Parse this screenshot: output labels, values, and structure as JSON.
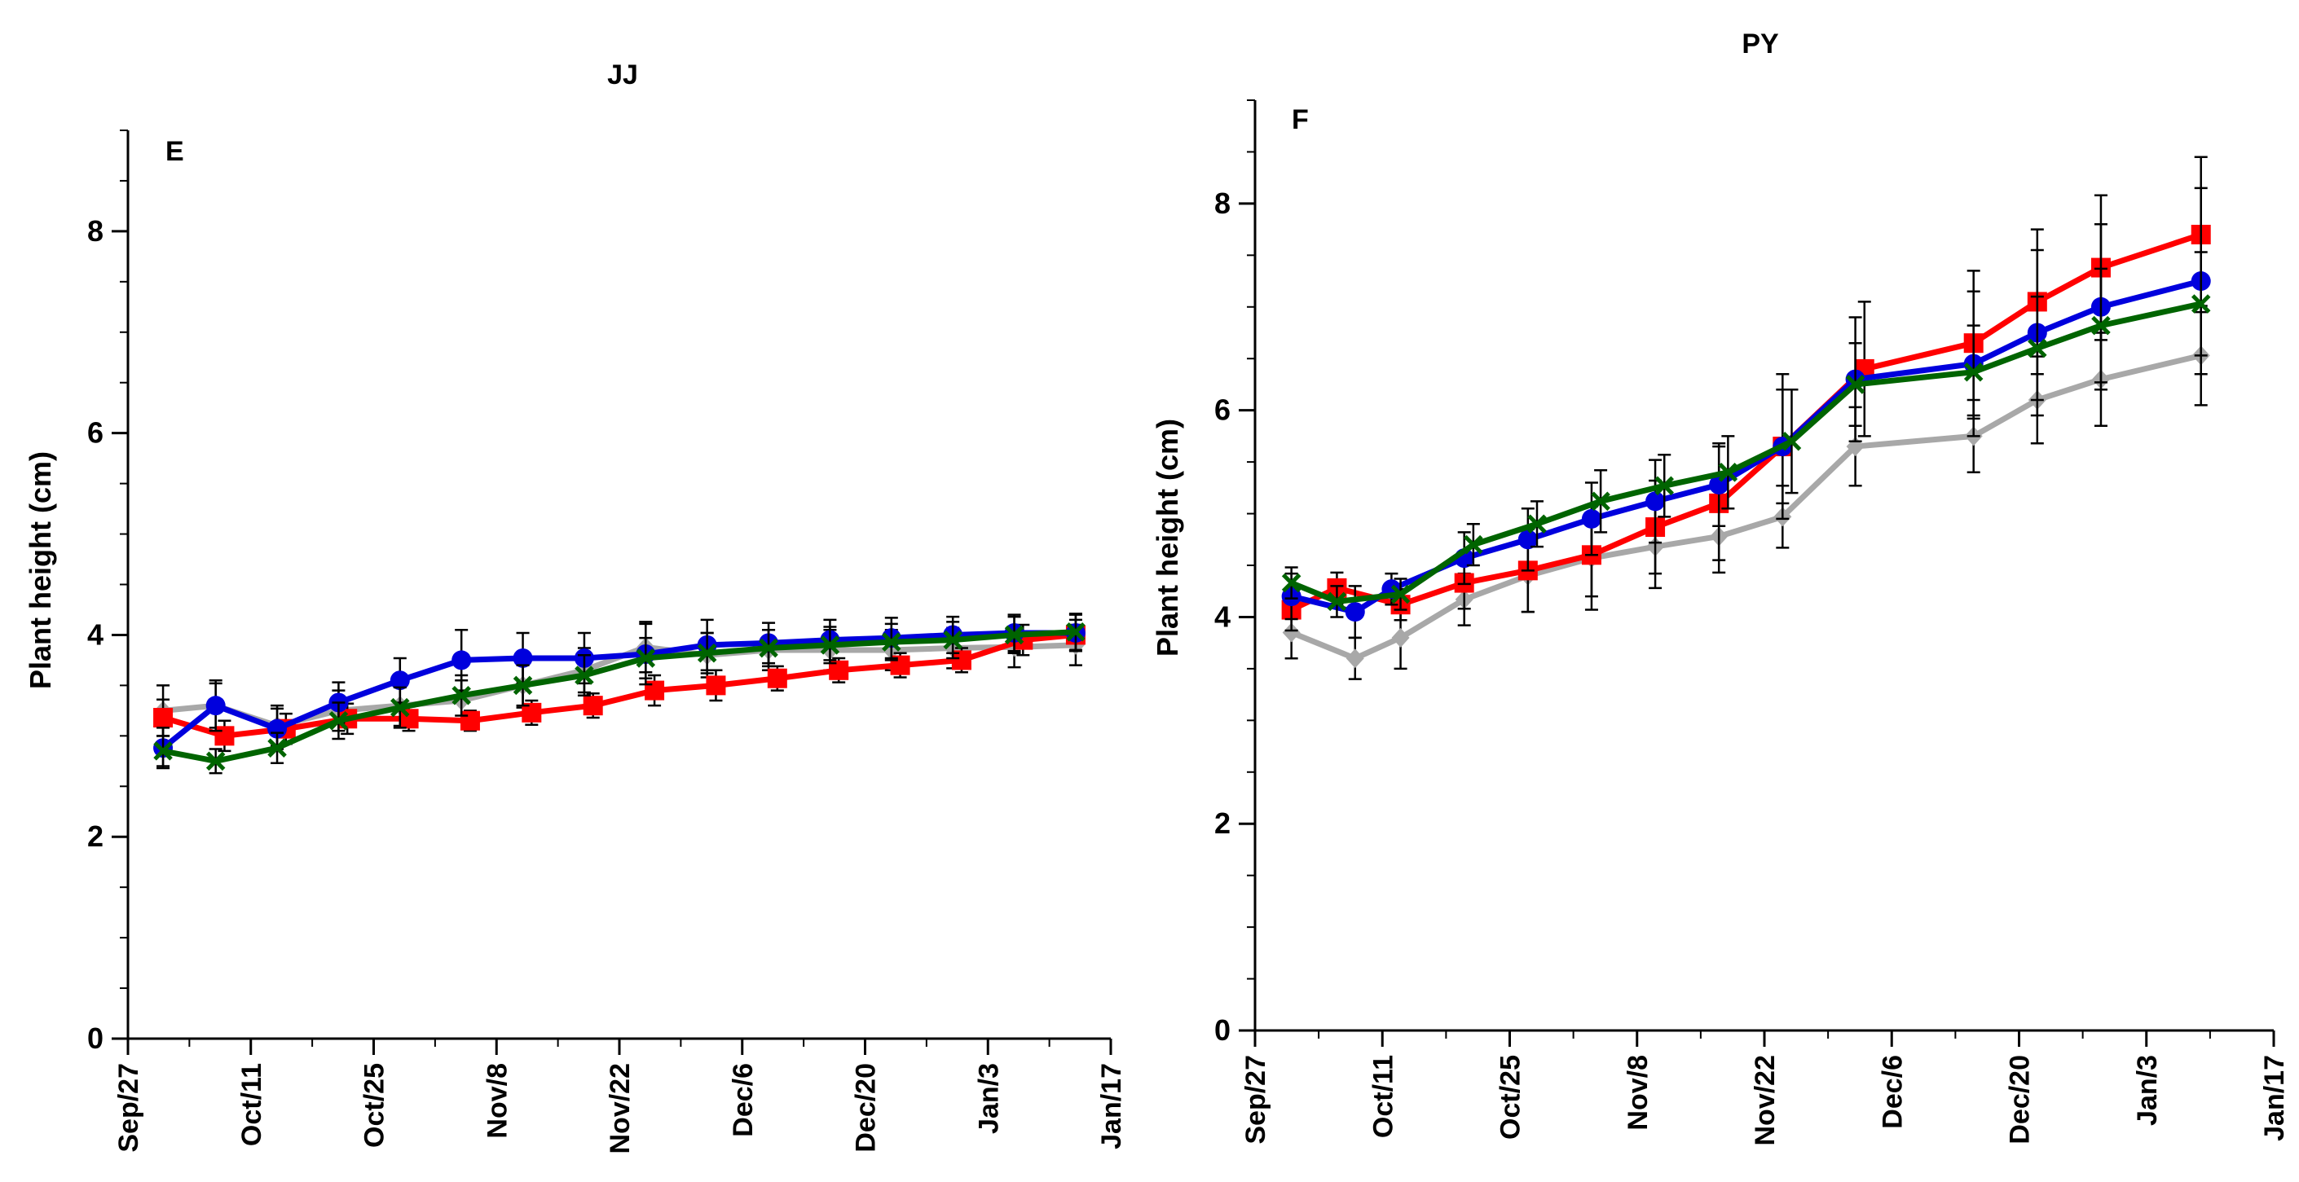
{
  "chart_data": [
    {
      "type": "line",
      "title": "JJ",
      "panel_label": "E",
      "xlabel": "",
      "ylabel": "Plant height (cm)",
      "ylim": [
        0,
        9
      ],
      "y_ticks": [
        0,
        2,
        4,
        6,
        8
      ],
      "x_ticks": [
        "Sep/27",
        "Oct/11",
        "Oct/25",
        "Nov/8",
        "Nov/22",
        "Dec/6",
        "Dec/20",
        "Jan/3",
        "Jan/17"
      ],
      "x_range_days": [
        0,
        112
      ],
      "grid": false,
      "series": [
        {
          "name": "blue",
          "color": "#0000dd",
          "marker": "circle",
          "x": [
            4,
            10,
            17,
            24,
            31,
            38,
            45,
            52,
            59,
            66,
            73,
            80,
            87,
            94,
            101,
            108
          ],
          "values": [
            2.88,
            3.3,
            3.07,
            3.33,
            3.55,
            3.75,
            3.77,
            3.77,
            3.81,
            3.9,
            3.92,
            3.95,
            3.97,
            4.0,
            4.02,
            4.02
          ],
          "errors": [
            0.2,
            0.25,
            0.2,
            0.2,
            0.22,
            0.3,
            0.25,
            0.25,
            0.3,
            0.25,
            0.2,
            0.2,
            0.2,
            0.18,
            0.18,
            0.18
          ]
        },
        {
          "name": "red",
          "color": "#ff0000",
          "marker": "square",
          "x": [
            4,
            11,
            18,
            25,
            32,
            39,
            46,
            53,
            60,
            67,
            74,
            81,
            88,
            95,
            102,
            108
          ],
          "values": [
            3.18,
            3.0,
            3.07,
            3.17,
            3.17,
            3.15,
            3.23,
            3.3,
            3.45,
            3.5,
            3.57,
            3.65,
            3.7,
            3.75,
            3.95,
            4.0
          ],
          "errors": [
            0.18,
            0.15,
            0.15,
            0.15,
            0.12,
            0.1,
            0.12,
            0.12,
            0.15,
            0.15,
            0.12,
            0.12,
            0.12,
            0.12,
            0.15,
            0.15
          ]
        },
        {
          "name": "green",
          "color": "#006400",
          "marker": "x",
          "x": [
            4,
            10,
            17,
            24,
            31,
            38,
            45,
            52,
            59,
            66,
            73,
            80,
            87,
            94,
            101,
            108
          ],
          "values": [
            2.85,
            2.75,
            2.88,
            3.15,
            3.28,
            3.4,
            3.5,
            3.6,
            3.77,
            3.82,
            3.87,
            3.9,
            3.93,
            3.95,
            4.0,
            4.03
          ],
          "errors": [
            0.15,
            0.12,
            0.15,
            0.18,
            0.2,
            0.2,
            0.2,
            0.2,
            0.2,
            0.2,
            0.18,
            0.18,
            0.18,
            0.18,
            0.18,
            0.18
          ]
        },
        {
          "name": "gray",
          "color": "#a8a8a8",
          "marker": "diamond",
          "x": [
            4,
            10,
            17,
            24,
            31,
            38,
            45,
            52,
            59,
            66,
            73,
            80,
            87,
            94,
            101,
            108
          ],
          "values": [
            3.25,
            3.3,
            3.1,
            3.25,
            3.3,
            3.35,
            3.5,
            3.65,
            3.88,
            3.8,
            3.85,
            3.85,
            3.85,
            3.87,
            3.88,
            3.9
          ],
          "errors": [
            0.25,
            0.22,
            0.2,
            0.2,
            0.2,
            0.2,
            0.22,
            0.22,
            0.25,
            0.22,
            0.2,
            0.2,
            0.2,
            0.2,
            0.2,
            0.2
          ]
        }
      ]
    },
    {
      "type": "line",
      "title": "PY",
      "panel_label": "F",
      "xlabel": "",
      "ylabel": "Plant height (cm)",
      "ylim": [
        0,
        9
      ],
      "y_ticks": [
        0,
        2,
        4,
        6,
        8
      ],
      "x_ticks": [
        "Sep/27",
        "Oct/11",
        "Oct/25",
        "Nov/8",
        "Nov/22",
        "Dec/6",
        "Dec/20",
        "Jan/3",
        "Jan/17"
      ],
      "x_range_days": [
        0,
        112
      ],
      "grid": false,
      "series": [
        {
          "name": "blue",
          "color": "#0000dd",
          "marker": "circle",
          "x": [
            4,
            11,
            15,
            23,
            30,
            37,
            44,
            51,
            58,
            66,
            79,
            86,
            93,
            104
          ],
          "values": [
            4.2,
            4.05,
            4.27,
            4.57,
            4.75,
            4.95,
            5.12,
            5.28,
            5.65,
            6.3,
            6.45,
            6.75,
            7.0,
            7.25
          ],
          "errors": [
            0.22,
            0.25,
            0.15,
            0.25,
            0.3,
            0.35,
            0.4,
            0.4,
            0.55,
            0.6,
            0.7,
            0.8,
            0.8,
            0.9
          ]
        },
        {
          "name": "red",
          "color": "#ff0000",
          "marker": "square",
          "x": [
            4,
            9,
            16,
            23,
            30,
            37,
            44,
            51,
            58,
            67,
            79,
            86,
            93,
            104
          ],
          "values": [
            4.07,
            4.28,
            4.12,
            4.33,
            4.45,
            4.6,
            4.87,
            5.1,
            5.65,
            6.4,
            6.65,
            7.05,
            7.38,
            7.7
          ],
          "errors": [
            0.2,
            0.15,
            0.15,
            0.25,
            0.4,
            0.4,
            0.45,
            0.55,
            0.7,
            0.65,
            0.7,
            0.7,
            0.7,
            0.75
          ]
        },
        {
          "name": "green",
          "color": "#006400",
          "marker": "x",
          "x": [
            4,
            9,
            16,
            24,
            31,
            38,
            45,
            52,
            59,
            66,
            79,
            86,
            93,
            104
          ],
          "values": [
            4.33,
            4.15,
            4.22,
            4.7,
            4.9,
            5.12,
            5.27,
            5.4,
            5.7,
            6.25,
            6.37,
            6.6,
            6.82,
            7.03
          ],
          "errors": [
            0.15,
            0.15,
            0.15,
            0.2,
            0.22,
            0.3,
            0.3,
            0.35,
            0.5,
            0.4,
            0.45,
            0.5,
            0.55,
            0.5
          ]
        },
        {
          "name": "gray",
          "color": "#a8a8a8",
          "marker": "diamond",
          "x": [
            4,
            11,
            16,
            23,
            30,
            37,
            44,
            51,
            58,
            66,
            79,
            86,
            93,
            104
          ],
          "values": [
            3.85,
            3.6,
            3.8,
            4.17,
            4.4,
            4.57,
            4.68,
            4.78,
            4.97,
            5.65,
            5.75,
            6.1,
            6.3,
            6.53
          ],
          "errors": [
            0.25,
            0.2,
            0.3,
            0.25,
            0.35,
            0.5,
            0.4,
            0.35,
            0.3,
            0.38,
            0.35,
            0.42,
            0.45,
            0.48
          ]
        }
      ]
    }
  ]
}
